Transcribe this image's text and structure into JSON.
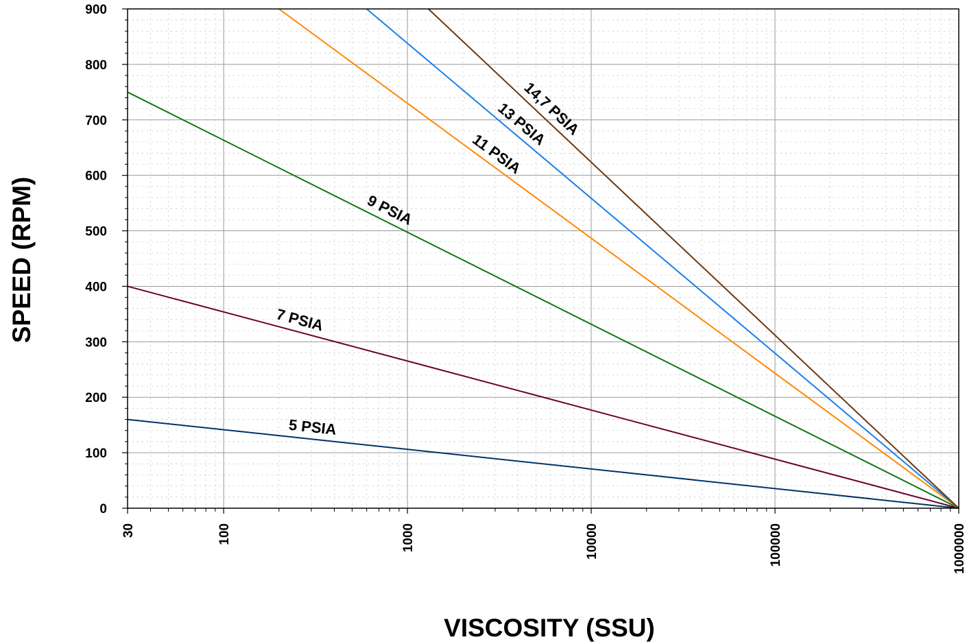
{
  "chart_data": {
    "type": "line",
    "title": "",
    "xlabel": "VISCOSITY (SSU)",
    "ylabel": "SPEED (RPM)",
    "xscale": "log",
    "xlim": [
      30,
      1000000
    ],
    "ylim": [
      0,
      900
    ],
    "grid": true,
    "legend": "inline labels on lines",
    "x_ticks": [
      "30",
      "100",
      "1000",
      "10000",
      "100000",
      "1000000"
    ],
    "y_ticks": [
      "0",
      "100",
      "200",
      "300",
      "400",
      "500",
      "600",
      "700",
      "800",
      "900"
    ],
    "series": [
      {
        "name": "5 PSIA",
        "color": "#003366",
        "x": [
          30,
          1000000
        ],
        "y": [
          160,
          0
        ],
        "label_at": [
          300
        ]
      },
      {
        "name": "7 PSIA",
        "color": "#6b0030",
        "x": [
          30,
          1000000
        ],
        "y": [
          400,
          0
        ],
        "label_at": [
          250
        ]
      },
      {
        "name": "9 PSIA",
        "color": "#117711",
        "x": [
          30,
          1000000
        ],
        "y": [
          750,
          0
        ],
        "label_at": [
          750
        ]
      },
      {
        "name": "11 PSIA",
        "color": "#ff8800",
        "x": [
          200,
          1000000
        ],
        "y": [
          900,
          0
        ],
        "label_at": [
          2800
        ]
      },
      {
        "name": "13 PSIA",
        "color": "#1a7fe8",
        "x": [
          600,
          1000000
        ],
        "y": [
          900,
          0
        ],
        "label_at": [
          3800
        ]
      },
      {
        "name": "14,7 PSIA",
        "color": "#6b3810",
        "x": [
          1300,
          1000000
        ],
        "y": [
          900,
          0
        ],
        "label_at": [
          5500
        ]
      }
    ]
  }
}
